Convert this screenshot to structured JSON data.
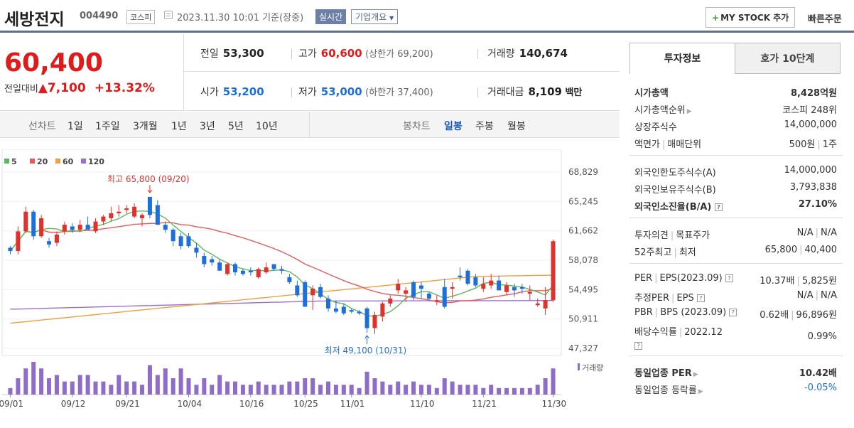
{
  "header": {
    "stock_name": "세방전지",
    "stock_code": "004490",
    "market": "코스피",
    "datetime": "2023.11.30 10:01",
    "basis": "기준(장중)",
    "realtime": "실시간",
    "corp_overview": "기업개요",
    "my_stock": "MY STOCK 추가",
    "quick_order": "빠른주문"
  },
  "price": {
    "current": "60,400",
    "change_label": "전일대비",
    "change": "7,100",
    "change_pct": "+13.32%"
  },
  "stats": {
    "prev_label": "전일",
    "prev": "53,300",
    "high_label": "고가",
    "high": "60,600",
    "upper_limit": "(상한가 69,200)",
    "volume_label": "거래량",
    "volume": "140,674",
    "open_label": "시가",
    "open": "53,200",
    "low_label": "저가",
    "low": "53,000",
    "lower_limit": "(하한가 37,400)",
    "amount_label": "거래대금",
    "amount": "8,109",
    "amount_unit": "백만"
  },
  "periods": {
    "line_label": "선차트",
    "line_items": [
      "1일",
      "1주일",
      "3개월",
      "1년",
      "3년",
      "5년",
      "10년"
    ],
    "candle_label": "봉차트",
    "candle_items": [
      "일봉",
      "주봉",
      "월봉"
    ],
    "selected": "일봉"
  },
  "chart_data": {
    "type": "candlestick",
    "legend": [
      "5",
      "20",
      "60",
      "120"
    ],
    "legend_colors": [
      "#5cb85c",
      "#e85a5a",
      "#f0a040",
      "#9b6fcf"
    ],
    "y_ticks": [
      "68,829",
      "65,245",
      "61,662",
      "58,078",
      "54,495",
      "50,911",
      "47,327"
    ],
    "ylim": [
      47327,
      68829
    ],
    "x_ticks": [
      "09/01",
      "09/12",
      "09/21",
      "10/04",
      "10/16",
      "10/25",
      "11/01",
      "11/10",
      "11/21",
      "11/30"
    ],
    "high_annotation": "최고 65,800 (09/20)",
    "low_annotation": "최저 49,100 (10/31)",
    "volume_label": "거래량",
    "candles": [
      [
        59600,
        59800,
        58800,
        59200
      ],
      [
        59200,
        62200,
        58800,
        61600
      ],
      [
        61600,
        64600,
        61400,
        64000
      ],
      [
        64000,
        64200,
        60600,
        61000
      ],
      [
        61000,
        63600,
        60800,
        63200
      ],
      [
        60400,
        60800,
        59600,
        60000
      ],
      [
        60200,
        61600,
        59800,
        61200
      ],
      [
        61600,
        62800,
        61200,
        62400
      ],
      [
        62200,
        62600,
        61400,
        61800
      ],
      [
        61800,
        63000,
        61600,
        62400
      ],
      [
        62400,
        63400,
        62000,
        61800
      ],
      [
        61600,
        63200,
        61400,
        62800
      ],
      [
        62800,
        63600,
        62400,
        63400
      ],
      [
        63200,
        64600,
        62800,
        63800
      ],
      [
        63800,
        64800,
        63400,
        64000
      ],
      [
        64200,
        64800,
        63800,
        64400
      ],
      [
        63400,
        65000,
        63200,
        64600
      ],
      [
        63200,
        63800,
        62200,
        63600
      ],
      [
        65800,
        65800,
        63200,
        63600
      ],
      [
        64800,
        65400,
        62400,
        62400
      ],
      [
        62400,
        62800,
        61400,
        61800
      ],
      [
        61800,
        62000,
        59800,
        60400
      ],
      [
        61000,
        61400,
        59400,
        59800
      ],
      [
        61000,
        61400,
        59600,
        59800
      ],
      [
        59600,
        60200,
        58400,
        59000
      ],
      [
        58600,
        59000,
        57200,
        57600
      ],
      [
        58200,
        58600,
        57400,
        57800
      ],
      [
        57800,
        58200,
        56800,
        56800
      ],
      [
        56400,
        57800,
        56200,
        57600
      ],
      [
        57600,
        57800,
        56200,
        56600
      ],
      [
        56800,
        57000,
        56200,
        56400
      ],
      [
        56800,
        57200,
        56200,
        56600
      ],
      [
        56000,
        57200,
        55800,
        57000
      ],
      [
        56600,
        57800,
        56400,
        57200
      ],
      [
        57600,
        57600,
        56800,
        57000
      ],
      [
        57000,
        57400,
        56400,
        56800
      ],
      [
        56000,
        56400,
        55200,
        55400
      ],
      [
        55000,
        55600,
        53600,
        53800
      ],
      [
        55400,
        55600,
        52400,
        52400
      ],
      [
        53800,
        55000,
        52000,
        54600
      ],
      [
        54800,
        55200,
        53400,
        53600
      ],
      [
        53400,
        53800,
        51800,
        52200
      ],
      [
        52200,
        53200,
        51600,
        51800
      ],
      [
        52400,
        52800,
        51400,
        51600
      ],
      [
        52000,
        52200,
        51600,
        51800
      ],
      [
        51800,
        52000,
        51400,
        51600
      ],
      [
        52200,
        52400,
        49200,
        49800
      ],
      [
        49800,
        51800,
        49100,
        51400
      ],
      [
        51200,
        53000,
        50600,
        52800
      ],
      [
        52800,
        53800,
        52400,
        53400
      ],
      [
        54400,
        55800,
        54000,
        55200
      ],
      [
        54000,
        54800,
        53000,
        54400
      ],
      [
        55400,
        55600,
        53200,
        53600
      ],
      [
        55000,
        55400,
        53400,
        54600
      ],
      [
        54000,
        54200,
        53200,
        53400
      ],
      [
        53000,
        53800,
        52600,
        53200
      ],
      [
        54800,
        55800,
        52200,
        52400
      ],
      [
        54600,
        55400,
        53400,
        54800
      ],
      [
        56200,
        57200,
        55600,
        56000
      ],
      [
        56800,
        57000,
        55000,
        55200
      ],
      [
        56000,
        56400,
        54800,
        55000
      ],
      [
        54600,
        56000,
        54200,
        55200
      ],
      [
        55000,
        56400,
        54600,
        55600
      ],
      [
        55600,
        56200,
        54400,
        54400
      ],
      [
        54200,
        55400,
        53800,
        55000
      ],
      [
        54800,
        55200,
        53600,
        54400
      ],
      [
        54800,
        55200,
        54000,
        54600
      ],
      [
        54000,
        55000,
        53200,
        54200
      ],
      [
        52600,
        53400,
        52400,
        52800
      ],
      [
        52200,
        54800,
        51400,
        53200
      ],
      [
        53200,
        60600,
        53000,
        60400
      ]
    ],
    "volumes": [
      2,
      5,
      8,
      10,
      8,
      5,
      6,
      4,
      4,
      6,
      6,
      4,
      4,
      3,
      6,
      4,
      4,
      3,
      9,
      6,
      8,
      5,
      8,
      5,
      3,
      5,
      3,
      6,
      4,
      4,
      3,
      3,
      4,
      3,
      3,
      3,
      4,
      4,
      5,
      5,
      3,
      4,
      3,
      3,
      3,
      2,
      7,
      5,
      4,
      3,
      4,
      3,
      4,
      3,
      3,
      2,
      5,
      4,
      3,
      3,
      3,
      2,
      3,
      2,
      2,
      2,
      2,
      2,
      3,
      5,
      8
    ]
  },
  "invest": {
    "tab_on": "투자정보",
    "tab_off": "호가 10단계",
    "market_cap_label": "시가총액",
    "market_cap": "8,428억원",
    "cap_rank_label": "시가총액순위",
    "cap_rank": "코스피 248위",
    "shares_label": "상장주식수",
    "shares": "14,000,000",
    "par_label": "액면가",
    "unit_label": "매매단위",
    "par": "500원",
    "unit": "1주",
    "foreign_limit_label": "외국인한도주식수(A)",
    "foreign_limit": "14,000,000",
    "foreign_hold_label": "외국인보유주식수(B)",
    "foreign_hold": "3,793,838",
    "foreign_ratio_label": "외국인소진율(B/A)",
    "foreign_ratio": "27.10%",
    "opinion_label": "투자의견",
    "target_label": "목표주가",
    "opinion": "N/A",
    "target": "N/A",
    "w52_high_label": "52주최고",
    "w52_low_label": "최저",
    "w52_high": "65,800",
    "w52_low": "40,400",
    "per_label": "PER",
    "eps_label": "EPS(2023.09)",
    "per": "10.37배",
    "eps": "5,825원",
    "est_per_label": "추정PER",
    "est_eps_label": "EPS",
    "est_per": "N/A",
    "est_eps": "N/A",
    "pbr_label": "PBR",
    "bps_label": "BPS (2023.09)",
    "pbr": "0.62배",
    "bps": "96,896원",
    "div_label": "배당수익률",
    "div_year": "2022.12",
    "div": "0.99%",
    "ind_per_label": "동일업종 PER",
    "ind_per": "10.42배",
    "ind_chg_label": "동일업종 등락률",
    "ind_chg": "-0.05%"
  }
}
